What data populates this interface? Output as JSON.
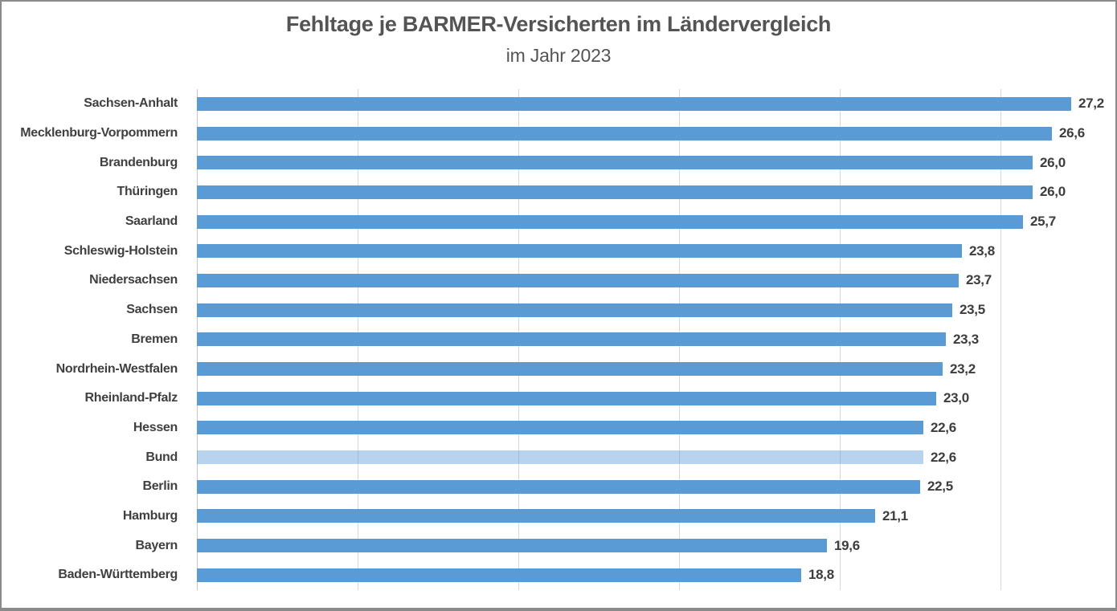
{
  "page": {
    "background": "#FFFFFF",
    "frame_border_color": "#8A8A8A"
  },
  "header": {
    "title": "Fehltage je BARMER-Versicherten im Ländervergleich",
    "subtitle": "im Jahr 2023",
    "text_color": "#545454"
  },
  "chart_data": {
    "type": "bar",
    "orientation": "horizontal",
    "title": "Fehltage je BARMER-Versicherten im Ländervergleich",
    "subtitle": "im Jahr 2023",
    "xlabel": "",
    "ylabel": "",
    "xlim": [
      0,
      28.6
    ],
    "grid": true,
    "gridline_values": [
      5,
      10,
      15,
      20,
      25
    ],
    "value_decimal_separator": ",",
    "categories": [
      "Sachsen-Anhalt",
      "Mecklenburg-Vorpommern",
      "Brandenburg",
      "Thüringen",
      "Saarland",
      "Schleswig-Holstein",
      "Niedersachsen",
      "Sachsen",
      "Bremen",
      "Nordrhein-Westfalen",
      "Rheinland-Pfalz",
      "Hessen",
      "Bund",
      "Berlin",
      "Hamburg",
      "Bayern",
      "Baden-Württemberg"
    ],
    "values": [
      27.2,
      26.6,
      26.0,
      26.0,
      25.7,
      23.8,
      23.7,
      23.5,
      23.3,
      23.2,
      23.0,
      22.6,
      22.6,
      22.5,
      21.1,
      19.6,
      18.8
    ],
    "value_labels": [
      "27,2",
      "26,6",
      "26,0",
      "26,0",
      "25,7",
      "23,8",
      "23,7",
      "23,5",
      "23,3",
      "23,2",
      "23,0",
      "22,6",
      "22,6",
      "22,5",
      "21,1",
      "19,6",
      "18,8"
    ],
    "highlight_category": "Bund",
    "highlight_index": 12,
    "bar_color": "#5B9BD5",
    "highlight_bar_color": "#BDD7EE",
    "gridline_color": "#D9D9D9",
    "axis_line_color": "#C6C6C6",
    "label_color": "#404040",
    "legend": false
  }
}
